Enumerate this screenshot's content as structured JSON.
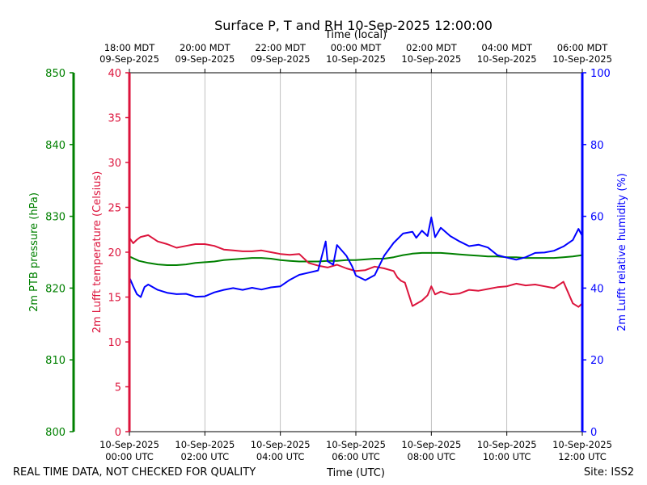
{
  "chart_data": {
    "type": "line",
    "title": "Surface P, T and RH 10-Sep-2025 12:00:00",
    "top_xlabel": "Time (local)",
    "bottom_xlabel": "Time (UTC)",
    "footer_left": "REAL TIME DATA, NOT CHECKED FOR QUALITY",
    "footer_right": "Site: ISS2",
    "x_hours_range": [
      0,
      12
    ],
    "grid": true,
    "bottom_ticks": [
      {
        "hour": 0,
        "date": "10-Sep-2025",
        "time": "00:00 UTC"
      },
      {
        "hour": 2,
        "date": "10-Sep-2025",
        "time": "02:00 UTC"
      },
      {
        "hour": 4,
        "date": "10-Sep-2025",
        "time": "04:00 UTC"
      },
      {
        "hour": 6,
        "date": "10-Sep-2025",
        "time": "06:00 UTC"
      },
      {
        "hour": 8,
        "date": "10-Sep-2025",
        "time": "08:00 UTC"
      },
      {
        "hour": 10,
        "date": "10-Sep-2025",
        "time": "10:00 UTC"
      },
      {
        "hour": 12,
        "date": "10-Sep-2025",
        "time": "12:00 UTC"
      }
    ],
    "top_ticks": [
      {
        "hour": 0,
        "time": "18:00 MDT",
        "date": "09-Sep-2025"
      },
      {
        "hour": 2,
        "time": "20:00 MDT",
        "date": "09-Sep-2025"
      },
      {
        "hour": 4,
        "time": "22:00 MDT",
        "date": "09-Sep-2025"
      },
      {
        "hour": 6,
        "time": "00:00 MDT",
        "date": "10-Sep-2025"
      },
      {
        "hour": 8,
        "time": "02:00 MDT",
        "date": "10-Sep-2025"
      },
      {
        "hour": 10,
        "time": "04:00 MDT",
        "date": "10-Sep-2025"
      },
      {
        "hour": 12,
        "time": "06:00 MDT",
        "date": "10-Sep-2025"
      }
    ],
    "axes": {
      "pressure": {
        "label": "2m PTB pressure (hPa)",
        "range": [
          800,
          850
        ],
        "ticks": [
          "800",
          "810",
          "820",
          "830",
          "840",
          "850"
        ],
        "color": "#008000"
      },
      "temperature": {
        "label": "2m Lufft temperature (Celsius)",
        "range": [
          0,
          40
        ],
        "ticks": [
          "0",
          "5",
          "10",
          "15",
          "20",
          "25",
          "30",
          "35",
          "40"
        ],
        "color": "#dc143c"
      },
      "humidity": {
        "label": "2m Lufft relative humidity (%)",
        "range": [
          0,
          100
        ],
        "ticks": [
          "0",
          "20",
          "40",
          "60",
          "80",
          "100"
        ],
        "color": "#0000ff"
      }
    },
    "series": [
      {
        "name": "2m PTB pressure",
        "axis": "pressure",
        "color": "#008000",
        "x": [
          0,
          0.25,
          0.5,
          0.75,
          1,
          1.25,
          1.5,
          1.75,
          2,
          2.25,
          2.5,
          2.75,
          3,
          3.25,
          3.5,
          3.75,
          4,
          4.25,
          4.5,
          4.75,
          5,
          5.25,
          5.5,
          5.75,
          6,
          6.25,
          6.5,
          6.75,
          7,
          7.25,
          7.5,
          7.75,
          8,
          8.25,
          8.5,
          8.75,
          9,
          9.25,
          9.5,
          9.75,
          10,
          10.25,
          10.5,
          10.75,
          11,
          11.25,
          11.5,
          11.75,
          12
        ],
        "values": [
          824.4,
          823.8,
          823.5,
          823.3,
          823.2,
          823.2,
          823.3,
          823.5,
          823.6,
          823.7,
          823.9,
          824.0,
          824.1,
          824.2,
          824.2,
          824.1,
          823.9,
          823.8,
          823.7,
          823.7,
          823.7,
          823.8,
          823.8,
          823.9,
          823.9,
          824.0,
          824.1,
          824.1,
          824.3,
          824.6,
          824.8,
          824.9,
          824.9,
          824.9,
          824.8,
          824.7,
          824.6,
          824.5,
          824.4,
          824.4,
          824.3,
          824.3,
          824.2,
          824.2,
          824.2,
          824.2,
          824.3,
          824.4,
          824.6
        ]
      },
      {
        "name": "2m Lufft temperature",
        "axis": "temperature",
        "color": "#dc143c",
        "x": [
          0,
          0.1,
          0.2,
          0.3,
          0.4,
          0.5,
          0.75,
          1,
          1.25,
          1.5,
          1.75,
          2,
          2.25,
          2.5,
          2.75,
          3,
          3.25,
          3.5,
          3.75,
          4,
          4.25,
          4.5,
          4.75,
          5,
          5.25,
          5.5,
          5.75,
          6,
          6.25,
          6.5,
          6.75,
          7,
          7.1,
          7.2,
          7.3,
          7.5,
          7.75,
          7.9,
          8,
          8.1,
          8.25,
          8.5,
          8.75,
          9,
          9.25,
          9.5,
          9.75,
          10,
          10.25,
          10.5,
          10.75,
          11,
          11.25,
          11.5,
          11.75,
          11.9,
          12
        ],
        "values": [
          21.6,
          21.0,
          21.4,
          21.7,
          21.8,
          21.9,
          21.2,
          20.9,
          20.5,
          20.7,
          20.9,
          20.9,
          20.7,
          20.3,
          20.2,
          20.1,
          20.1,
          20.2,
          20.0,
          19.8,
          19.7,
          19.8,
          18.8,
          18.5,
          18.3,
          18.6,
          18.2,
          17.9,
          18.0,
          18.4,
          18.2,
          17.9,
          17.2,
          16.8,
          16.6,
          14.0,
          14.6,
          15.2,
          16.2,
          15.3,
          15.6,
          15.3,
          15.4,
          15.8,
          15.7,
          15.9,
          16.1,
          16.2,
          16.5,
          16.3,
          16.4,
          16.2,
          16.0,
          16.7,
          14.3,
          13.9,
          14.3
        ]
      },
      {
        "name": "2m Lufft relative humidity",
        "axis": "humidity",
        "color": "#0000ff",
        "x": [
          0,
          0.1,
          0.2,
          0.3,
          0.4,
          0.5,
          0.75,
          1,
          1.25,
          1.5,
          1.75,
          2,
          2.25,
          2.5,
          2.75,
          3,
          3.25,
          3.5,
          3.75,
          4,
          4.25,
          4.5,
          4.75,
          5,
          5.2,
          5.25,
          5.4,
          5.5,
          5.75,
          5.9,
          6,
          6.25,
          6.5,
          6.75,
          7,
          7.25,
          7.5,
          7.6,
          7.75,
          7.9,
          8,
          8.1,
          8.25,
          8.5,
          8.75,
          9,
          9.25,
          9.5,
          9.75,
          10,
          10.25,
          10.5,
          10.75,
          11,
          11.25,
          11.5,
          11.75,
          11.9,
          12
        ],
        "values": [
          43.0,
          40.5,
          38.3,
          37.5,
          40.3,
          41.0,
          39.5,
          38.7,
          38.3,
          38.4,
          37.6,
          37.7,
          38.8,
          39.5,
          40.0,
          39.5,
          40.1,
          39.6,
          40.2,
          40.5,
          42.3,
          43.7,
          44.3,
          44.9,
          53.0,
          47.5,
          46.5,
          52.0,
          49.0,
          46.1,
          43.5,
          42.2,
          43.6,
          49.0,
          52.6,
          55.2,
          55.7,
          54.0,
          56.0,
          54.5,
          59.7,
          54.2,
          56.8,
          54.5,
          53.0,
          51.7,
          52.1,
          51.3,
          49.2,
          48.5,
          47.9,
          48.6,
          49.8,
          49.9,
          50.4,
          51.6,
          53.4,
          56.5,
          54.5
        ]
      }
    ]
  }
}
